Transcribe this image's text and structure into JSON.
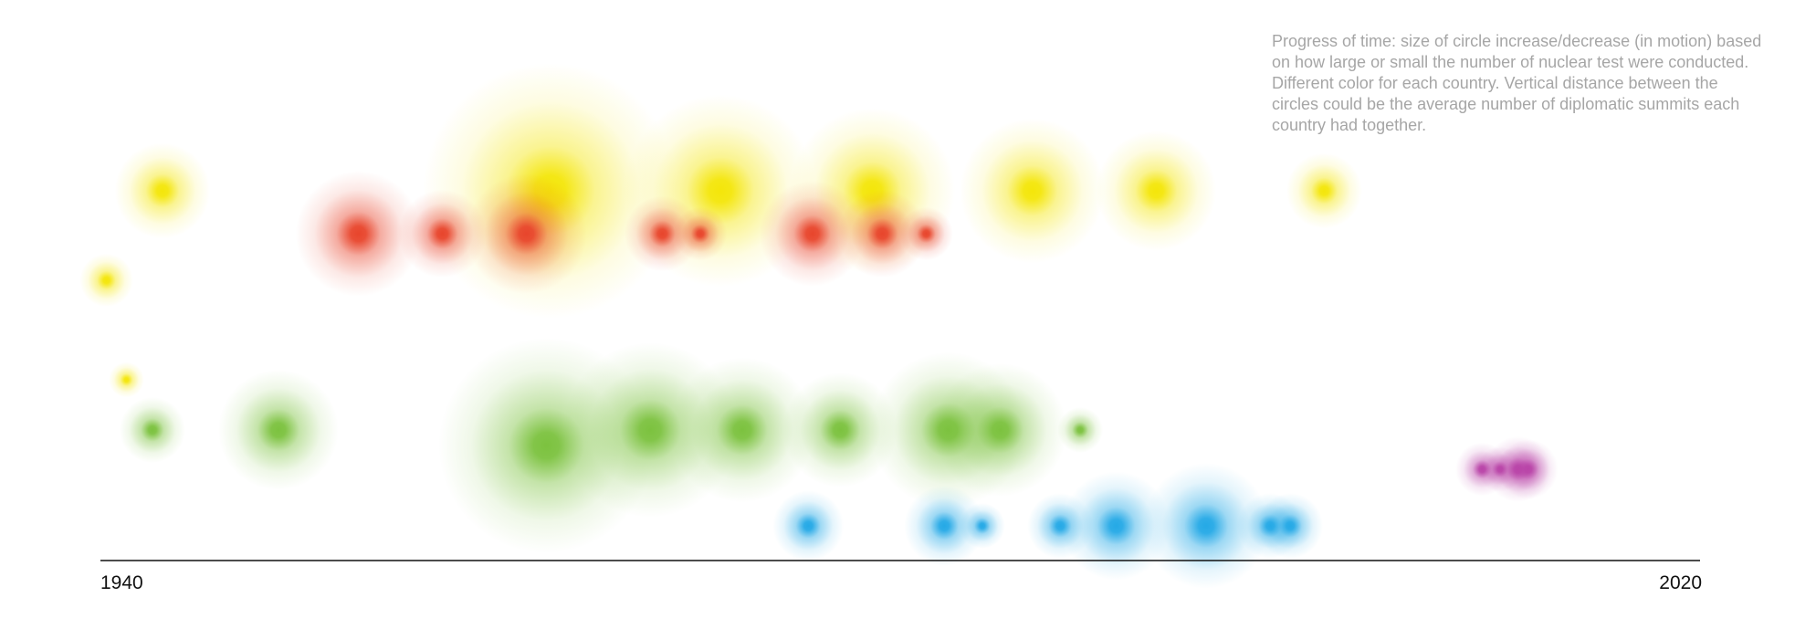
{
  "note": "Progress of time: size of circle increase/decrease (in motion) based on how large or small the number of nuclear test were conducted. Different color for each country. Vertical distance between the circles could be the average number of diplomatic summits each country had together.",
  "chart_data": {
    "type": "scatter",
    "title": "",
    "xlabel": "",
    "ylabel": "",
    "xlim": [
      1940,
      2020
    ],
    "axis_labels": {
      "start": "1940",
      "end": "2020"
    },
    "grid": false,
    "legend": "none",
    "series": [
      {
        "color": "#f4e60a",
        "lane": 1,
        "points": [
          {
            "x": 1943.1,
            "size": 0.12
          },
          {
            "x": 1962.5,
            "size": 1.0
          },
          {
            "x": 1971.0,
            "size": 0.55
          },
          {
            "x": 1978.6,
            "size": 0.4
          },
          {
            "x": 1986.6,
            "size": 0.3
          },
          {
            "x": 1992.8,
            "size": 0.2
          },
          {
            "x": 2001.2,
            "size": 0.07
          }
        ]
      },
      {
        "color": "#f4e60a",
        "lane": 3,
        "points": [
          {
            "x": 1940.3,
            "size": 0.03
          }
        ]
      },
      {
        "color": "#f4e60a",
        "lane": 4,
        "points": [
          {
            "x": 1941.3,
            "size": 0.01
          }
        ]
      },
      {
        "color": "#e8452c",
        "lane": 2,
        "points": [
          {
            "x": 1952.9,
            "size": 0.22
          },
          {
            "x": 1957.1,
            "size": 0.1
          },
          {
            "x": 1961.3,
            "size": 0.2
          },
          {
            "x": 1968.1,
            "size": 0.07
          },
          {
            "x": 1970.0,
            "size": 0.03
          },
          {
            "x": 1975.6,
            "size": 0.15
          },
          {
            "x": 1979.1,
            "size": 0.1
          },
          {
            "x": 1981.3,
            "size": 0.03
          }
        ]
      },
      {
        "color": "#7cc23f",
        "lane": 5,
        "points": [
          {
            "x": 1942.6,
            "size": 0.05
          },
          {
            "x": 1948.9,
            "size": 0.2
          },
          {
            "x": 1962.3,
            "size": 0.7
          },
          {
            "x": 1967.5,
            "size": 0.45
          },
          {
            "x": 1972.1,
            "size": 0.3
          },
          {
            "x": 1977.0,
            "size": 0.18
          },
          {
            "x": 1982.4,
            "size": 0.35
          },
          {
            "x": 1985.0,
            "size": 0.25
          },
          {
            "x": 1989.0,
            "size": 0.02
          }
        ]
      },
      {
        "color": "#25a9e6",
        "lane": 7,
        "points": [
          {
            "x": 1975.4,
            "size": 0.06
          },
          {
            "x": 1982.2,
            "size": 0.08
          },
          {
            "x": 1984.1,
            "size": 0.02
          },
          {
            "x": 1988.0,
            "size": 0.05
          },
          {
            "x": 1990.8,
            "size": 0.16
          },
          {
            "x": 1995.3,
            "size": 0.22
          },
          {
            "x": 1998.5,
            "size": 0.05
          },
          {
            "x": 1999.5,
            "size": 0.05
          }
        ]
      },
      {
        "color": "#b944a8",
        "lane": 6,
        "points": [
          {
            "x": 2009.1,
            "size": 0.03
          },
          {
            "x": 2010.0,
            "size": 0.02
          },
          {
            "x": 2010.9,
            "size": 0.05
          },
          {
            "x": 2011.4,
            "size": 0.04
          }
        ]
      }
    ]
  }
}
